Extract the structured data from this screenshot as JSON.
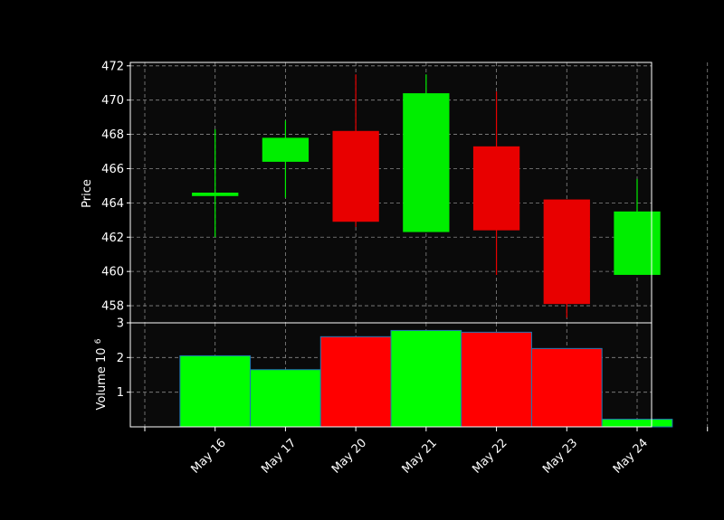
{
  "chart_data": [
    {
      "type": "candlestick",
      "panel": "price",
      "ylabel": "Price",
      "ylim": [
        457,
        472.2
      ],
      "yticks": [
        458,
        460,
        462,
        464,
        466,
        468,
        470,
        472
      ],
      "grid": true,
      "categories": [
        "May 16",
        "May 17",
        "May 20",
        "May 21",
        "May 22",
        "May 23",
        "May 24"
      ],
      "open": [
        464.4,
        466.4,
        468.2,
        462.3,
        467.3,
        464.2,
        459.8
      ],
      "high": [
        468.3,
        468.8,
        471.5,
        471.5,
        470.5,
        464.2,
        465.4
      ],
      "low": [
        462.0,
        464.3,
        462.6,
        462.3,
        459.8,
        457.3,
        459.8
      ],
      "close": [
        464.6,
        467.8,
        462.9,
        470.4,
        462.4,
        458.1,
        463.5
      ],
      "up_color": "#00ee00",
      "down_color": "#e80000"
    },
    {
      "type": "bar",
      "panel": "volume",
      "ylabel": "Volume  10",
      "ylabel_exponent": "6",
      "ylim": [
        0,
        3
      ],
      "yticks": [
        1,
        2,
        3
      ],
      "grid": true,
      "categories": [
        "May 16",
        "May 17",
        "May 20",
        "May 21",
        "May 22",
        "May 23",
        "May 24"
      ],
      "values": [
        2.05,
        1.65,
        2.6,
        2.78,
        2.73,
        2.26,
        0.22
      ],
      "colors": [
        "#00ff00",
        "#00ff00",
        "#ff0000",
        "#00ff00",
        "#ff0000",
        "#ff0000",
        "#00ff00"
      ],
      "edge_color": "#1f77b4"
    }
  ],
  "colors": {
    "background": "#000000",
    "plot_background": "#0a0a0a",
    "grid": "#888888",
    "text": "#ffffff"
  }
}
